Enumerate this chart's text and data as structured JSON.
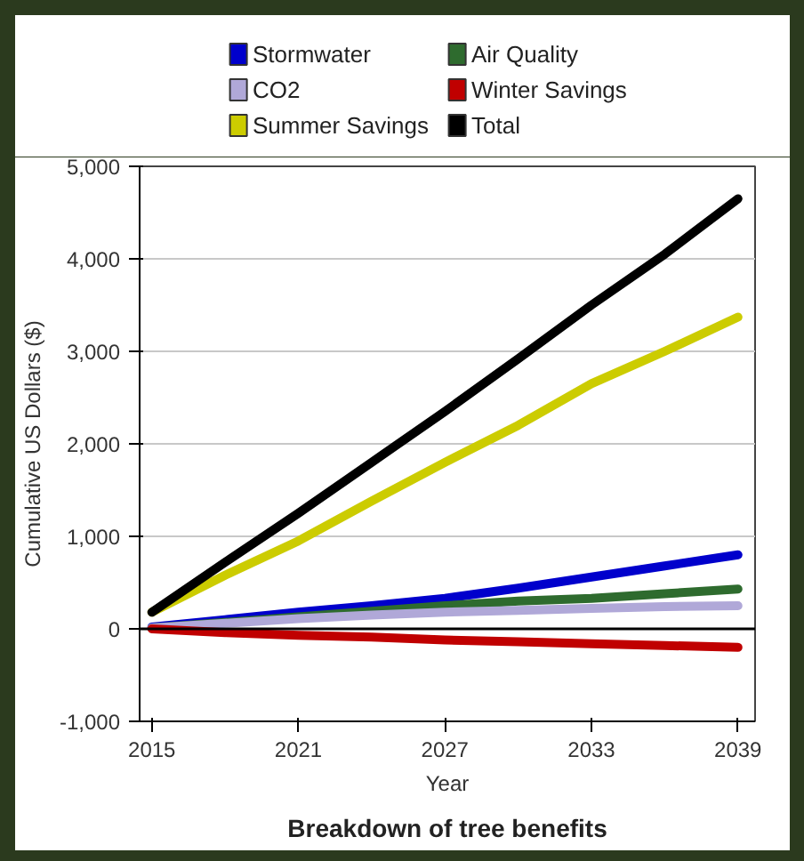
{
  "chart_data": {
    "type": "line",
    "title": "Breakdown of tree benefits",
    "xlabel": "Year",
    "ylabel": "Cumulative US Dollars ($)",
    "x": [
      2015,
      2018,
      2021,
      2024,
      2027,
      2030,
      2033,
      2036,
      2039
    ],
    "series": [
      {
        "name": "Stormwater",
        "color": "#0000cc",
        "values": [
          20,
          100,
          180,
          250,
          330,
          440,
          560,
          680,
          800
        ]
      },
      {
        "name": "Air Quality",
        "color": "#2e6b2e",
        "values": [
          10,
          70,
          130,
          190,
          250,
          300,
          330,
          380,
          430
        ]
      },
      {
        "name": "CO2",
        "color": "#b0a8d8",
        "values": [
          10,
          60,
          110,
          150,
          180,
          200,
          220,
          240,
          250
        ]
      },
      {
        "name": "Winter Savings",
        "color": "#c00000",
        "values": [
          0,
          -40,
          -70,
          -90,
          -120,
          -140,
          -160,
          -180,
          -200
        ]
      },
      {
        "name": "Summer Savings",
        "color": "#cccc00",
        "values": [
          180,
          580,
          950,
          1380,
          1800,
          2200,
          2650,
          3000,
          3370
        ]
      },
      {
        "name": "Total",
        "color": "#000000",
        "values": [
          180,
          720,
          1250,
          1800,
          2350,
          2920,
          3500,
          4050,
          4650
        ]
      }
    ],
    "xlim": [
      2014.5,
      2039.7
    ],
    "xticks": [
      2015,
      2021,
      2027,
      2033,
      2039
    ],
    "ylim": [
      -1000,
      5000
    ],
    "yticks": [
      {
        "value": -1000,
        "label": "-1,000"
      },
      0,
      {
        "value": 1000,
        "label": "1,000"
      },
      {
        "value": 2000,
        "label": "2,000"
      },
      {
        "value": 3000,
        "label": "3,000"
      },
      {
        "value": 4000,
        "label": "4,000"
      },
      {
        "value": 5000,
        "label": "5,000"
      }
    ],
    "ref_lines": [
      {
        "axis": "y",
        "value": 0,
        "color": "#000000"
      }
    ],
    "grid": "y",
    "legend": "top",
    "marker": "none",
    "line_style": "solid"
  }
}
